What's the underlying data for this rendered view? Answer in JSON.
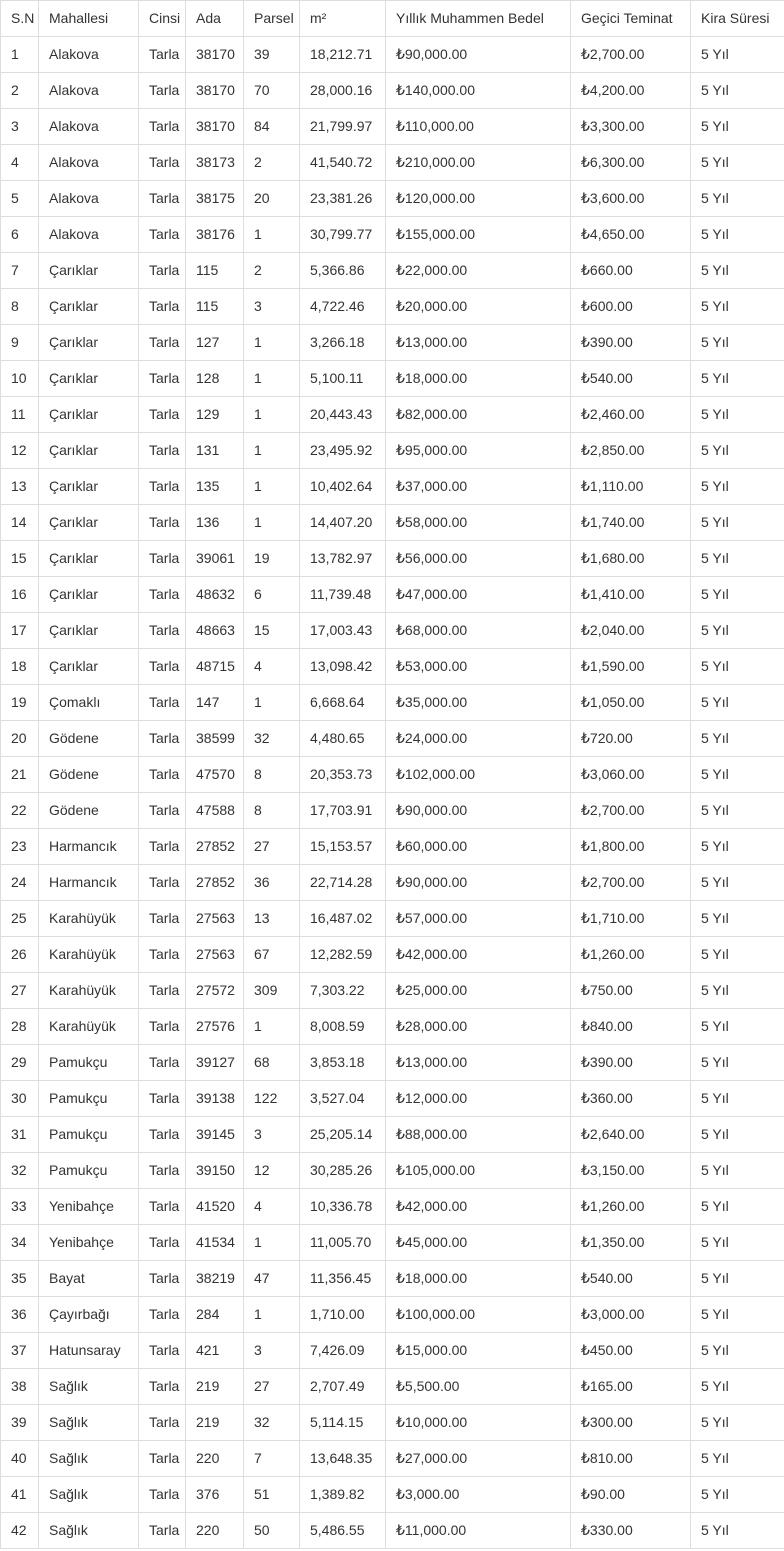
{
  "colors": {
    "border": "#dddddd",
    "text": "#333333",
    "background": "#ffffff"
  },
  "table": {
    "columns": [
      "S.N",
      "Mahallesi",
      "Cinsi",
      "Ada",
      "Parsel",
      "m²",
      "Yıllık Muhammen Bedel",
      "Geçici Teminat",
      "Kira Süresi"
    ],
    "rows": [
      [
        "1",
        "Alakova",
        "Tarla",
        "38170",
        "39",
        "18,212.71",
        "₺90,000.00",
        "₺2,700.00",
        "5 Yıl"
      ],
      [
        "2",
        "Alakova",
        "Tarla",
        "38170",
        "70",
        "28,000.16",
        "₺140,000.00",
        "₺4,200.00",
        "5 Yıl"
      ],
      [
        "3",
        "Alakova",
        "Tarla",
        "38170",
        "84",
        "21,799.97",
        "₺110,000.00",
        "₺3,300.00",
        "5 Yıl"
      ],
      [
        "4",
        "Alakova",
        "Tarla",
        "38173",
        "2",
        "41,540.72",
        "₺210,000.00",
        "₺6,300.00",
        "5 Yıl"
      ],
      [
        "5",
        "Alakova",
        "Tarla",
        "38175",
        "20",
        "23,381.26",
        "₺120,000.00",
        "₺3,600.00",
        "5 Yıl"
      ],
      [
        "6",
        "Alakova",
        "Tarla",
        "38176",
        "1",
        "30,799.77",
        "₺155,000.00",
        "₺4,650.00",
        "5 Yıl"
      ],
      [
        "7",
        "Çarıklar",
        "Tarla",
        "115",
        "2",
        "5,366.86",
        "₺22,000.00",
        "₺660.00",
        "5 Yıl"
      ],
      [
        "8",
        "Çarıklar",
        "Tarla",
        "115",
        "3",
        "4,722.46",
        "₺20,000.00",
        "₺600.00",
        "5 Yıl"
      ],
      [
        "9",
        "Çarıklar",
        "Tarla",
        "127",
        "1",
        "3,266.18",
        "₺13,000.00",
        "₺390.00",
        "5 Yıl"
      ],
      [
        "10",
        "Çarıklar",
        "Tarla",
        "128",
        "1",
        "5,100.11",
        "₺18,000.00",
        "₺540.00",
        "5 Yıl"
      ],
      [
        "11",
        "Çarıklar",
        "Tarla",
        "129",
        "1",
        "20,443.43",
        "₺82,000.00",
        "₺2,460.00",
        "5 Yıl"
      ],
      [
        "12",
        "Çarıklar",
        "Tarla",
        "131",
        "1",
        "23,495.92",
        "₺95,000.00",
        "₺2,850.00",
        "5 Yıl"
      ],
      [
        "13",
        "Çarıklar",
        "Tarla",
        "135",
        "1",
        "10,402.64",
        "₺37,000.00",
        "₺1,110.00",
        "5 Yıl"
      ],
      [
        "14",
        "Çarıklar",
        "Tarla",
        "136",
        "1",
        "14,407.20",
        "₺58,000.00",
        "₺1,740.00",
        "5 Yıl"
      ],
      [
        "15",
        "Çarıklar",
        "Tarla",
        "39061",
        "19",
        "13,782.97",
        "₺56,000.00",
        "₺1,680.00",
        "5 Yıl"
      ],
      [
        "16",
        "Çarıklar",
        "Tarla",
        "48632",
        "6",
        "11,739.48",
        "₺47,000.00",
        "₺1,410.00",
        "5 Yıl"
      ],
      [
        "17",
        "Çarıklar",
        "Tarla",
        "48663",
        "15",
        "17,003.43",
        "₺68,000.00",
        "₺2,040.00",
        "5 Yıl"
      ],
      [
        "18",
        "Çarıklar",
        "Tarla",
        "48715",
        "4",
        "13,098.42",
        "₺53,000.00",
        "₺1,590.00",
        "5 Yıl"
      ],
      [
        "19",
        "Çomaklı",
        "Tarla",
        "147",
        "1",
        "6,668.64",
        "₺35,000.00",
        "₺1,050.00",
        "5 Yıl"
      ],
      [
        "20",
        "Gödene",
        "Tarla",
        "38599",
        "32",
        "4,480.65",
        "₺24,000.00",
        "₺720.00",
        "5 Yıl"
      ],
      [
        "21",
        "Gödene",
        "Tarla",
        "47570",
        "8",
        "20,353.73",
        "₺102,000.00",
        "₺3,060.00",
        "5 Yıl"
      ],
      [
        "22",
        "Gödene",
        "Tarla",
        "47588",
        "8",
        "17,703.91",
        "₺90,000.00",
        "₺2,700.00",
        "5 Yıl"
      ],
      [
        "23",
        "Harmancık",
        "Tarla",
        "27852",
        "27",
        "15,153.57",
        "₺60,000.00",
        "₺1,800.00",
        "5 Yıl"
      ],
      [
        "24",
        "Harmancık",
        "Tarla",
        "27852",
        "36",
        "22,714.28",
        "₺90,000.00",
        "₺2,700.00",
        "5 Yıl"
      ],
      [
        "25",
        "Karahüyük",
        "Tarla",
        "27563",
        "13",
        "16,487.02",
        "₺57,000.00",
        "₺1,710.00",
        "5 Yıl"
      ],
      [
        "26",
        "Karahüyük",
        "Tarla",
        "27563",
        "67",
        "12,282.59",
        "₺42,000.00",
        "₺1,260.00",
        "5 Yıl"
      ],
      [
        "27",
        "Karahüyük",
        "Tarla",
        "27572",
        "309",
        "7,303.22",
        "₺25,000.00",
        "₺750.00",
        "5 Yıl"
      ],
      [
        "28",
        "Karahüyük",
        "Tarla",
        "27576",
        "1",
        "8,008.59",
        "₺28,000.00",
        "₺840.00",
        "5 Yıl"
      ],
      [
        "29",
        "Pamukçu",
        "Tarla",
        "39127",
        "68",
        "3,853.18",
        "₺13,000.00",
        "₺390.00",
        "5 Yıl"
      ],
      [
        "30",
        "Pamukçu",
        "Tarla",
        "39138",
        "122",
        "3,527.04",
        "₺12,000.00",
        "₺360.00",
        "5 Yıl"
      ],
      [
        "31",
        "Pamukçu",
        "Tarla",
        "39145",
        "3",
        "25,205.14",
        "₺88,000.00",
        "₺2,640.00",
        "5 Yıl"
      ],
      [
        "32",
        "Pamukçu",
        "Tarla",
        "39150",
        "12",
        "30,285.26",
        "₺105,000.00",
        "₺3,150.00",
        "5 Yıl"
      ],
      [
        "33",
        "Yenibahçe",
        "Tarla",
        "41520",
        "4",
        "10,336.78",
        "₺42,000.00",
        "₺1,260.00",
        "5 Yıl"
      ],
      [
        "34",
        "Yenibahçe",
        "Tarla",
        "41534",
        "1",
        "11,005.70",
        "₺45,000.00",
        "₺1,350.00",
        "5 Yıl"
      ],
      [
        "35",
        "Bayat",
        "Tarla",
        "38219",
        "47",
        "11,356.45",
        "₺18,000.00",
        "₺540.00",
        "5 Yıl"
      ],
      [
        "36",
        "Çayırbağı",
        "Tarla",
        "284",
        "1",
        "1,710.00",
        "₺100,000.00",
        "₺3,000.00",
        "5 Yıl"
      ],
      [
        "37",
        "Hatunsaray",
        "Tarla",
        "421",
        "3",
        "7,426.09",
        "₺15,000.00",
        "₺450.00",
        "5 Yıl"
      ],
      [
        "38",
        "Sağlık",
        "Tarla",
        "219",
        "27",
        "2,707.49",
        "₺5,500.00",
        "₺165.00",
        "5 Yıl"
      ],
      [
        "39",
        "Sağlık",
        "Tarla",
        "219",
        "32",
        "5,114.15",
        "₺10,000.00",
        "₺300.00",
        "5 Yıl"
      ],
      [
        "40",
        "Sağlık",
        "Tarla",
        "220",
        "7",
        "13,648.35",
        "₺27,000.00",
        "₺810.00",
        "5 Yıl"
      ],
      [
        "41",
        "Sağlık",
        "Tarla",
        "376",
        "51",
        "1,389.82",
        "₺3,000.00",
        "₺90.00",
        "5 Yıl"
      ],
      [
        "42",
        "Sağlık",
        "Tarla",
        "220",
        "50",
        "5,486.55",
        "₺11,000.00",
        "₺330.00",
        "5 Yıl"
      ]
    ]
  }
}
